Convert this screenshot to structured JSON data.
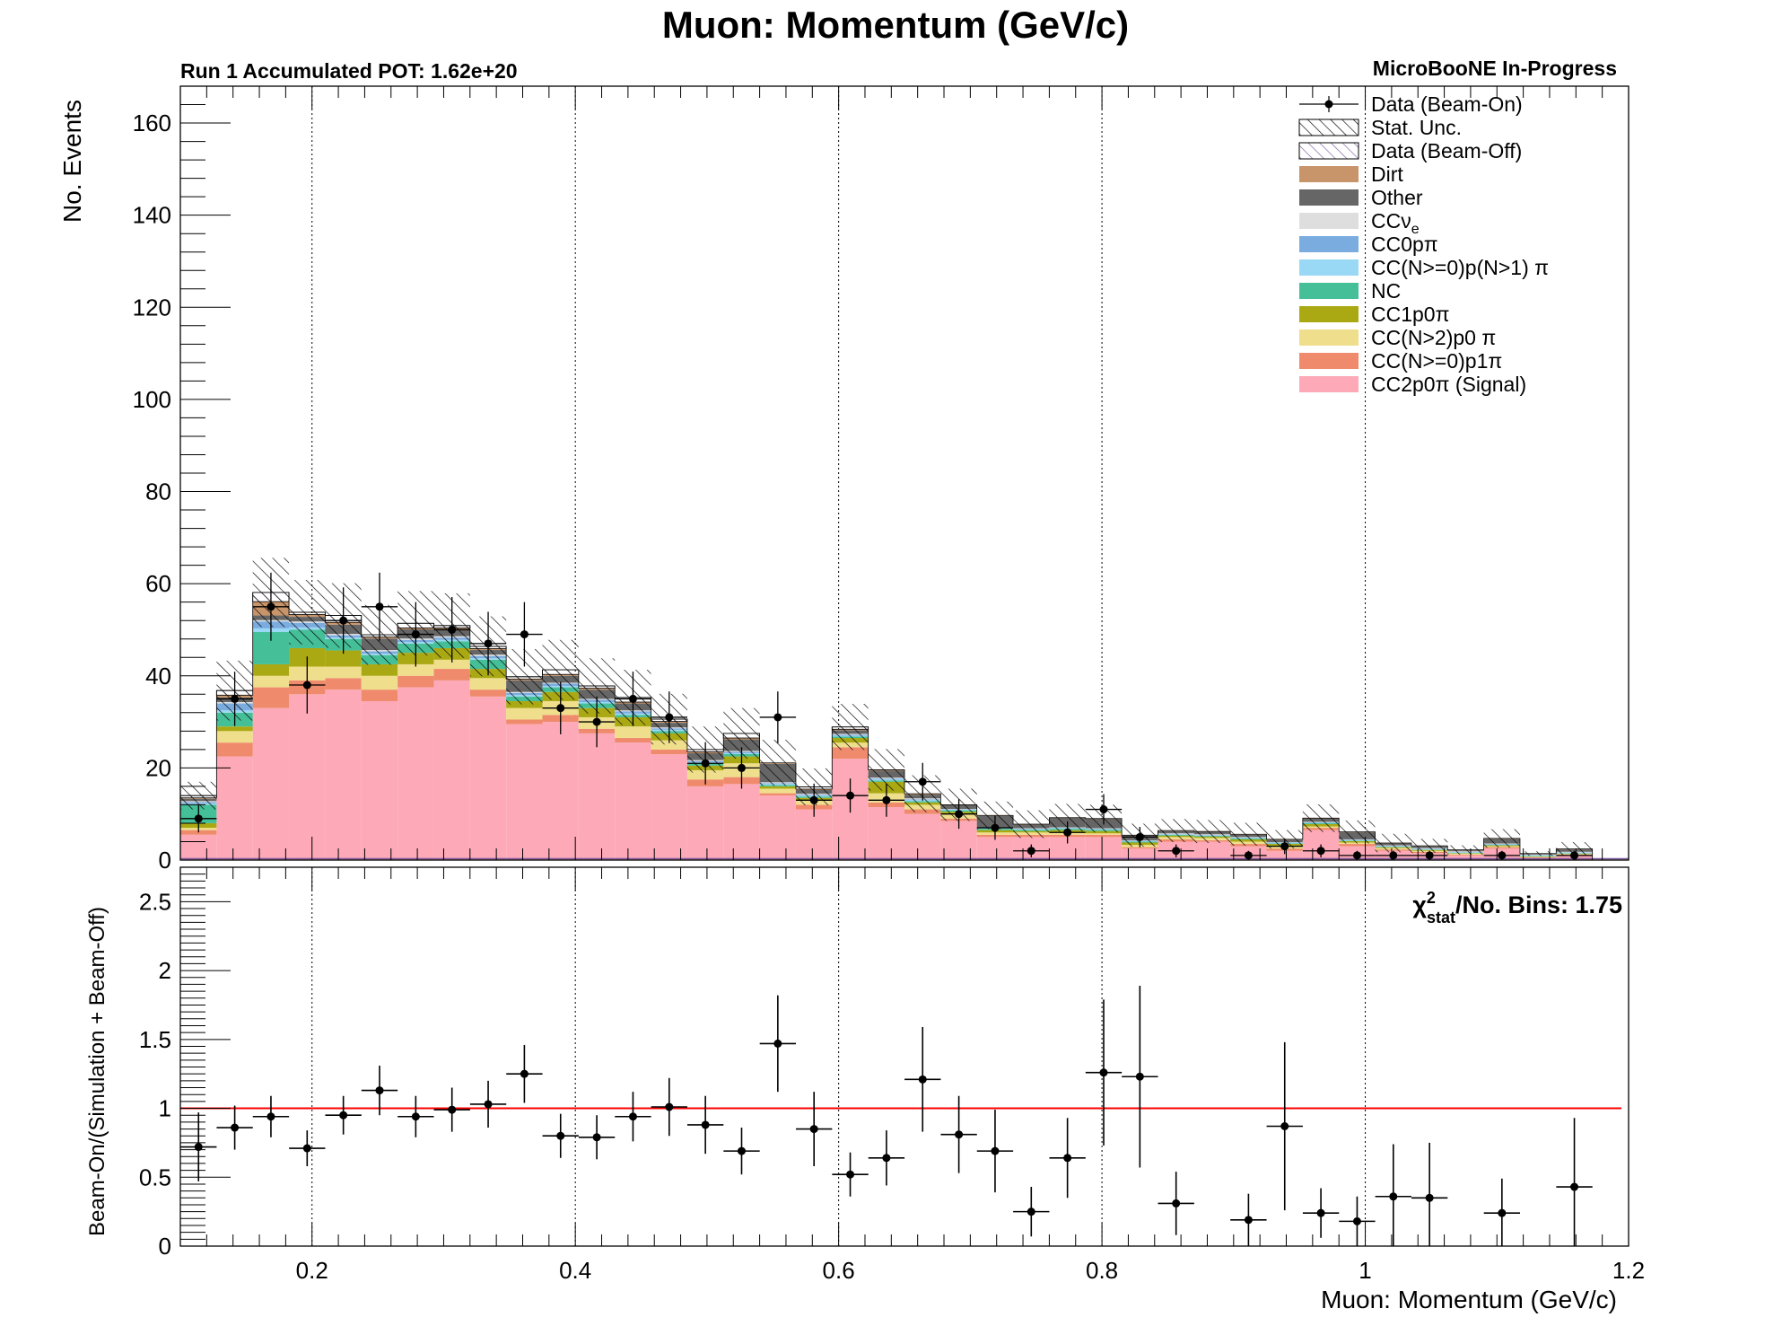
{
  "chart_data": [
    {
      "type": "stacked-bar",
      "title": "Muon: Momentum (GeV/c)",
      "subtitle_left": "Run 1 Accumulated POT: 1.62e+20",
      "subtitle_right": "MicroBooNE In-Progress",
      "ylabel": "No. Events",
      "xlim": [
        0.1,
        1.2
      ],
      "ylim": [
        0,
        168
      ],
      "x_ticks": [
        "0.2",
        "0.4",
        "0.6",
        "0.8",
        "1",
        "1.2"
      ],
      "y_ticks": [
        "0",
        "20",
        "40",
        "60",
        "80",
        "100",
        "120",
        "140",
        "160"
      ],
      "grid": "vertical dotted",
      "legend_position": "top-right",
      "bin_edges": [
        0.1,
        0.1275,
        0.155,
        0.1825,
        0.21,
        0.2375,
        0.265,
        0.2925,
        0.32,
        0.3475,
        0.375,
        0.4025,
        0.43,
        0.4575,
        0.485,
        0.5125,
        0.54,
        0.5675,
        0.595,
        0.6225,
        0.65,
        0.6775,
        0.705,
        0.7325,
        0.76,
        0.7875,
        0.815,
        0.8425,
        0.87,
        0.8975,
        0.925,
        0.9525,
        0.98,
        1.0075,
        1.035,
        1.0625,
        1.09,
        1.1175,
        1.145,
        1.1725,
        1.2
      ],
      "legend": [
        {
          "name": "Data (Beam-On)",
          "swatch": "point"
        },
        {
          "name": "Stat. Unc.",
          "swatch": "hatch"
        },
        {
          "name": "Data (Beam-Off)",
          "swatch": "hatch-purple"
        },
        {
          "name": "Dirt",
          "color": "#c8946a"
        },
        {
          "name": "Other",
          "color": "#666666"
        },
        {
          "name": "CCν",
          "sub": "e",
          "color": "#dedede"
        },
        {
          "name": "CC0pπ",
          "color": "#7bace0"
        },
        {
          "name": "CC(N>=0)p(N>1) π",
          "color": "#99d9f5"
        },
        {
          "name": "NC",
          "color": "#45bf98"
        },
        {
          "name": "CC1p0π",
          "color": "#aaa914"
        },
        {
          "name": "CC(N>2)p0 π",
          "color": "#efde8c"
        },
        {
          "name": "CC(N>=0)p1π",
          "color": "#ef8a6c"
        },
        {
          "name": "CC2p0π (Signal)",
          "color": "#fda9b8"
        }
      ],
      "series": [
        {
          "name": "CC2p0π (Signal)",
          "color": "#fda9b8",
          "values": [
            5.5,
            22.5,
            33,
            36,
            37,
            34.5,
            37.5,
            39,
            35.5,
            29.5,
            30,
            27.5,
            25.5,
            23,
            16,
            16.5,
            14,
            11,
            22,
            11.5,
            10,
            8.5,
            5,
            5,
            5,
            5,
            2.5,
            4,
            4,
            3,
            2,
            6.5,
            3,
            2,
            1.5,
            1,
            2.5,
            0.5,
            1
          ]
        },
        {
          "name": "CC(N>=0)p1π",
          "color": "#ef8a6c",
          "values": [
            1,
            3,
            4.5,
            3,
            2.5,
            2.5,
            2.5,
            2.5,
            1.5,
            1,
            1.5,
            1,
            1,
            1,
            1.5,
            1.5,
            0.5,
            1,
            2.5,
            1,
            1,
            0.5,
            0.5,
            0.5,
            0.5,
            0.5,
            0.3,
            0.5,
            0.3,
            0.5,
            0.5,
            0.5,
            0.5,
            0.3,
            0.3,
            0.2,
            0.3,
            0.1,
            0.2
          ]
        },
        {
          "name": "CC(N>2)p0 π",
          "color": "#efde8c",
          "values": [
            0.5,
            2.5,
            2.5,
            3,
            2.5,
            3,
            2.5,
            2,
            2.5,
            2.5,
            3,
            2.5,
            2.5,
            2,
            2,
            3,
            1,
            1,
            1,
            2,
            1,
            1,
            0.5,
            0.5,
            0.5,
            0.3,
            0.5,
            0.5,
            0.5,
            0.5,
            0.5,
            0.3,
            0.3,
            0.3,
            0.2,
            0.2,
            0.2,
            0.1,
            0.1
          ]
        },
        {
          "name": "CC1p0π",
          "color": "#aaa914",
          "values": [
            1,
            1,
            2.5,
            4,
            3.5,
            2.5,
            2.5,
            2.5,
            2,
            1.5,
            2,
            2,
            2,
            1.5,
            1,
            1.5,
            0.5,
            0.5,
            1,
            2.5,
            0.5,
            0.5,
            0.5,
            0.3,
            0.5,
            0.5,
            0.5,
            0.3,
            0.3,
            0.5,
            0.5,
            0.5,
            0.3,
            0.2,
            0.2,
            0.1,
            0.2,
            0.1,
            0.1
          ]
        },
        {
          "name": "NC",
          "color": "#45bf98",
          "values": [
            4,
            3,
            7,
            4,
            2.5,
            2,
            2,
            1.5,
            2,
            1,
            1,
            1,
            0.5,
            0.5,
            0.5,
            0.5,
            0.3,
            0.3,
            0.3,
            0.3,
            0.3,
            0.3,
            0.3,
            0.3,
            0.3,
            0.3,
            0.2,
            0.2,
            0.2,
            0.2,
            0.1,
            0.2,
            0.1,
            0.1,
            0.1,
            0.1,
            0.1,
            0.1,
            0.1
          ]
        },
        {
          "name": "CC(N>=0)p(N>1) π",
          "color": "#99d9f5",
          "values": [
            0.3,
            0.5,
            0.8,
            0.5,
            0.3,
            0.3,
            0.3,
            0.3,
            0.3,
            0.3,
            0.3,
            0.3,
            0.3,
            0.3,
            0.2,
            0.2,
            0.2,
            0.2,
            0.2,
            0.2,
            0.2,
            0.1,
            0.1,
            0.1,
            0.1,
            0.1,
            0.1,
            0.1,
            0.1,
            0.1,
            0.1,
            0.1,
            0.1,
            0.1,
            0.1,
            0.1,
            0.1,
            0.1,
            0.1
          ]
        },
        {
          "name": "CC0pπ",
          "color": "#7bace0",
          "values": [
            0.3,
            1.5,
            1.5,
            1,
            0.5,
            0.5,
            0.5,
            0.5,
            0.5,
            0.5,
            0.5,
            0.5,
            0.5,
            0.3,
            0.3,
            0.3,
            0.2,
            0.2,
            0.2,
            0.2,
            0.2,
            0.1,
            0.1,
            0.1,
            0.1,
            0.1,
            0.1,
            0.1,
            0.1,
            0.1,
            0.1,
            0.1,
            0.1,
            0.1,
            0.1,
            0.1,
            0.1,
            0.1,
            0.1
          ]
        },
        {
          "name": "CCνe",
          "color": "#dedede",
          "values": [
            0.2,
            0.3,
            0.3,
            0.3,
            0.3,
            0.3,
            0.3,
            0.3,
            0.3,
            0.2,
            0.2,
            0.2,
            0.2,
            0.2,
            0.2,
            0.2,
            0.2,
            0.2,
            0.2,
            0.2,
            0.2,
            0.1,
            0.1,
            0.1,
            0.1,
            0.1,
            0.1,
            0.1,
            0.1,
            0.1,
            0.1,
            0.1,
            0.1,
            0.1,
            0.1,
            0.1,
            0.1,
            0.1,
            0.1
          ]
        },
        {
          "name": "Other",
          "color": "#666666",
          "values": [
            0.5,
            1,
            1,
            1,
            2,
            2.5,
            2,
            1.5,
            1,
            2.5,
            1.5,
            2,
            1.5,
            1,
            1.5,
            2.5,
            4,
            0.8,
            0.8,
            1.5,
            0.8,
            0.8,
            2.5,
            0.8,
            2,
            2,
            1,
            0.5,
            0.5,
            0.5,
            0.5,
            0.7,
            1.5,
            0.4,
            0.4,
            0.2,
            1,
            0.1,
            0.5
          ]
        },
        {
          "name": "Dirt",
          "color": "#c8946a",
          "values": [
            0.2,
            0.5,
            3,
            0.5,
            0.5,
            0.3,
            0.3,
            0.3,
            0.3,
            0.3,
            0.3,
            0.3,
            0.3,
            0.3,
            0.3,
            0.3,
            0.2,
            0.2,
            0.2,
            0.2,
            0.2,
            0.1,
            0.1,
            0.1,
            0.1,
            0.1,
            0.1,
            0.1,
            0.1,
            0.1,
            0.1,
            0.1,
            0.1,
            0.1,
            0.1,
            0.1,
            0.1,
            0.1,
            0.1
          ]
        },
        {
          "name": "Data (Beam-Off)",
          "color": "#ffffff",
          "values": [
            0.5,
            1,
            2,
            0.5,
            1.5,
            0.5,
            1,
            0.5,
            0.5,
            0.5,
            1,
            0.5,
            1,
            0.5,
            0.5,
            1,
            0,
            0.5,
            0.5,
            0,
            0,
            0,
            0,
            0,
            0,
            0,
            0,
            0,
            0,
            0,
            0,
            0,
            0,
            0,
            0,
            0,
            0,
            0,
            0
          ]
        }
      ],
      "stat_unc_band": [
        3,
        6.5,
        7.5,
        7,
        7,
        6.5,
        7,
        7,
        6.5,
        6,
        6.5,
        6,
        6,
        5.5,
        5,
        5.5,
        5,
        4,
        5,
        4.5,
        4,
        3.5,
        3,
        3,
        3,
        3,
        2.5,
        2.5,
        2.5,
        2.5,
        2,
        3,
        2.5,
        2,
        1.5,
        1,
        2,
        0.5,
        1.5
      ],
      "data_beam_on": {
        "x": [
          0.1138,
          0.1413,
          0.1688,
          0.1963,
          0.2238,
          0.2513,
          0.2788,
          0.3063,
          0.3338,
          0.3613,
          0.3888,
          0.4163,
          0.4438,
          0.4713,
          0.4988,
          0.5263,
          0.5538,
          0.5813,
          0.6088,
          0.6363,
          0.6638,
          0.6913,
          0.7188,
          0.7463,
          0.7738,
          0.8013,
          0.8288,
          0.8563,
          0.8838,
          0.9113,
          0.9388,
          0.9663,
          0.9938,
          1.0213,
          1.0488,
          1.0763,
          1.1038,
          1.1313,
          1.1588
        ],
        "y": [
          9,
          35,
          55,
          38,
          52,
          55,
          49,
          50,
          47,
          49,
          33,
          30,
          35,
          31,
          21,
          20,
          31,
          13,
          14,
          13,
          17,
          10,
          7,
          2,
          6,
          11,
          5,
          2,
          null,
          1,
          3,
          2,
          1,
          1,
          1,
          null,
          1,
          null,
          1
        ],
        "yerr": [
          3,
          5.9,
          7.4,
          6.2,
          7.2,
          7.4,
          7,
          7.1,
          6.9,
          7,
          5.7,
          5.5,
          5.9,
          5.6,
          4.6,
          4.5,
          5.6,
          3.6,
          3.7,
          3.6,
          4.1,
          3.2,
          2.6,
          1.4,
          2.4,
          3.3,
          2.2,
          1.4,
          null,
          1,
          1.7,
          1.4,
          1,
          1,
          1,
          null,
          1,
          null,
          1
        ]
      }
    },
    {
      "type": "scatter",
      "ylabel": "Beam-On/(Simulation + Beam-Off)",
      "xlabel": "Muon: Momentum (GeV/c)",
      "xlim": [
        0.1,
        1.2
      ],
      "ylim": [
        0,
        2.75
      ],
      "y_ticks": [
        "0",
        "0.5",
        "1",
        "1.5",
        "2",
        "2.5"
      ],
      "reference_line": 1,
      "reference_color": "#ff0000",
      "annotation_main": "χ",
      "annotation_sup": "2",
      "annotation_sub": "stat",
      "annotation_rest": "/No. Bins: 1.75",
      "points": {
        "x": [
          0.1138,
          0.1413,
          0.1688,
          0.1963,
          0.2238,
          0.2513,
          0.2788,
          0.3063,
          0.3338,
          0.3613,
          0.3888,
          0.4163,
          0.4438,
          0.4713,
          0.4988,
          0.5263,
          0.5538,
          0.5813,
          0.6088,
          0.6363,
          0.6638,
          0.6913,
          0.7188,
          0.7463,
          0.7738,
          0.8013,
          0.8288,
          0.8563,
          0.9113,
          0.9388,
          0.9663,
          0.9938,
          1.0213,
          1.0488,
          1.1038,
          1.1588
        ],
        "y": [
          0.72,
          0.86,
          0.94,
          0.71,
          0.95,
          1.13,
          0.94,
          0.99,
          1.03,
          1.25,
          0.8,
          0.79,
          0.94,
          1.01,
          0.88,
          0.69,
          1.47,
          0.85,
          0.52,
          0.64,
          1.21,
          0.81,
          0.69,
          0.25,
          0.64,
          1.26,
          1.23,
          0.31,
          0.19,
          0.87,
          0.24,
          0.18,
          0.36,
          0.35,
          0.24,
          0.43
        ],
        "yerr": [
          0.25,
          0.16,
          0.15,
          0.13,
          0.14,
          0.18,
          0.15,
          0.16,
          0.17,
          0.21,
          0.16,
          0.16,
          0.18,
          0.21,
          0.21,
          0.17,
          0.35,
          0.27,
          0.16,
          0.2,
          0.38,
          0.28,
          0.3,
          0.18,
          0.29,
          0.53,
          0.66,
          0.23,
          0.19,
          0.61,
          0.18,
          0.18,
          0.38,
          0.4,
          0.25,
          0.5
        ]
      }
    }
  ]
}
